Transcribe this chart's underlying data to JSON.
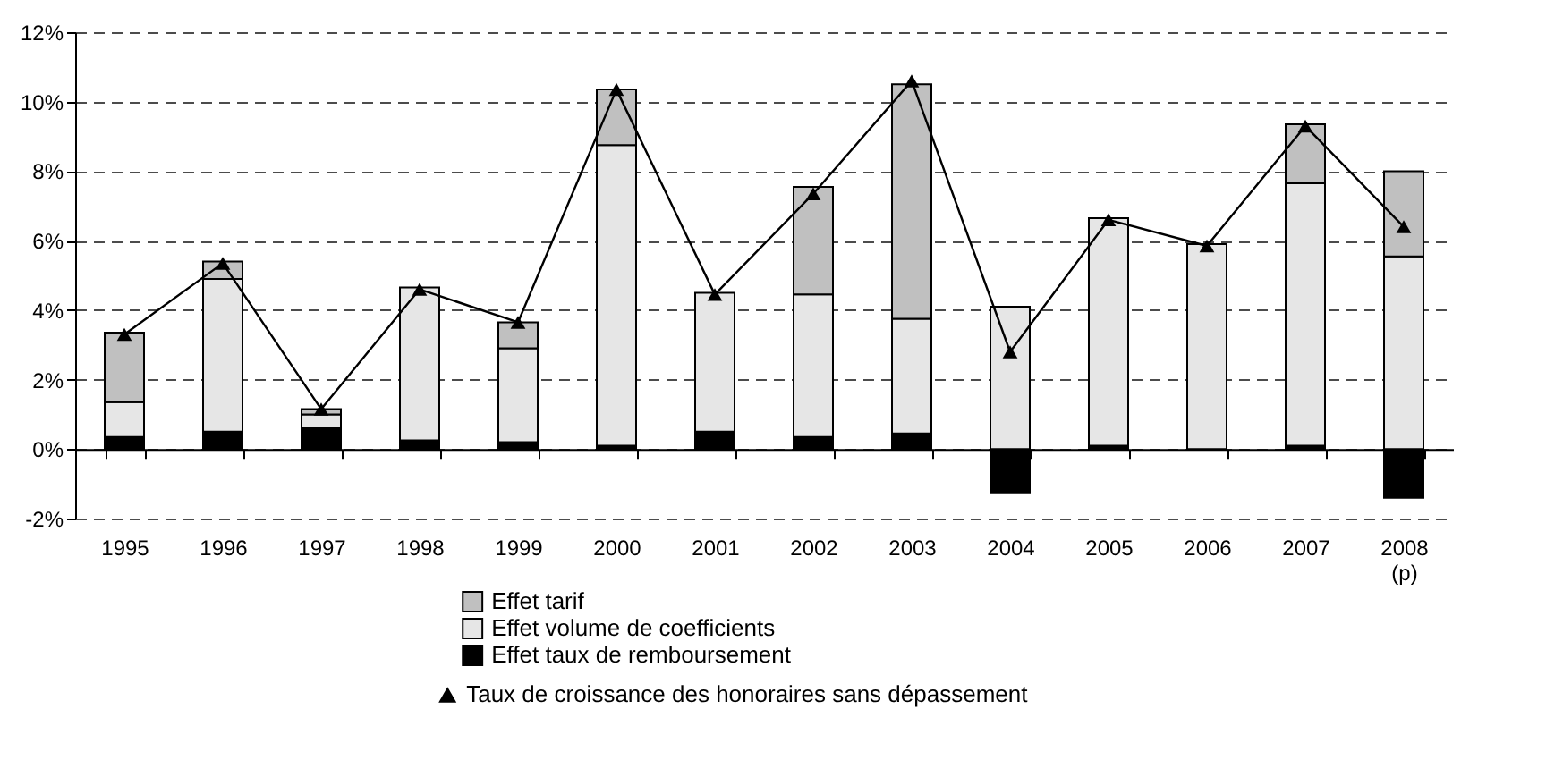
{
  "chart_data": {
    "type": "bar",
    "stacked": true,
    "categories": [
      "1995",
      "1996",
      "1997",
      "1998",
      "1999",
      "2000",
      "2001",
      "2002",
      "2003",
      "2004",
      "2005",
      "2006",
      "2007",
      "2008 (p)"
    ],
    "series": [
      {
        "name": "Effet taux de remboursement",
        "color": "#000000",
        "values": [
          0.35,
          0.5,
          0.6,
          0.25,
          0.2,
          0.1,
          0.5,
          0.35,
          0.45,
          -1.25,
          0.1,
          0,
          0.1,
          -1.4
        ]
      },
      {
        "name": "Effet volume de coefficients",
        "color": "#e6e6e6",
        "values": [
          1.0,
          4.4,
          0.4,
          4.4,
          2.7,
          8.65,
          4.0,
          4.1,
          3.3,
          4.1,
          6.55,
          5.9,
          7.55,
          5.55
        ]
      },
      {
        "name": "Effet tarif",
        "color": "#c0c0c0",
        "values": [
          2.0,
          0.5,
          0.15,
          0,
          0.75,
          1.6,
          0,
          3.1,
          6.75,
          0,
          0,
          0,
          1.7,
          2.45
        ]
      },
      {
        "name": "Taux de croissance des honoraires sans dépassement",
        "type": "line",
        "color": "#000000",
        "marker": "triangle",
        "values": [
          3.3,
          5.35,
          1.15,
          4.6,
          3.65,
          10.35,
          4.45,
          7.35,
          10.6,
          2.8,
          6.6,
          5.85,
          9.3,
          6.4
        ]
      }
    ],
    "ylim": [
      -2,
      12
    ],
    "yticks": [
      {
        "value": -2,
        "label": "-2%"
      },
      {
        "value": 0,
        "label": "0%"
      },
      {
        "value": 2,
        "label": "2%"
      },
      {
        "value": 4,
        "label": "4%"
      },
      {
        "value": 6,
        "label": "6%"
      },
      {
        "value": 8,
        "label": "8%"
      },
      {
        "value": 10,
        "label": "10%"
      },
      {
        "value": 12,
        "label": "12%"
      }
    ],
    "grid": "y",
    "legend": "bottom"
  }
}
